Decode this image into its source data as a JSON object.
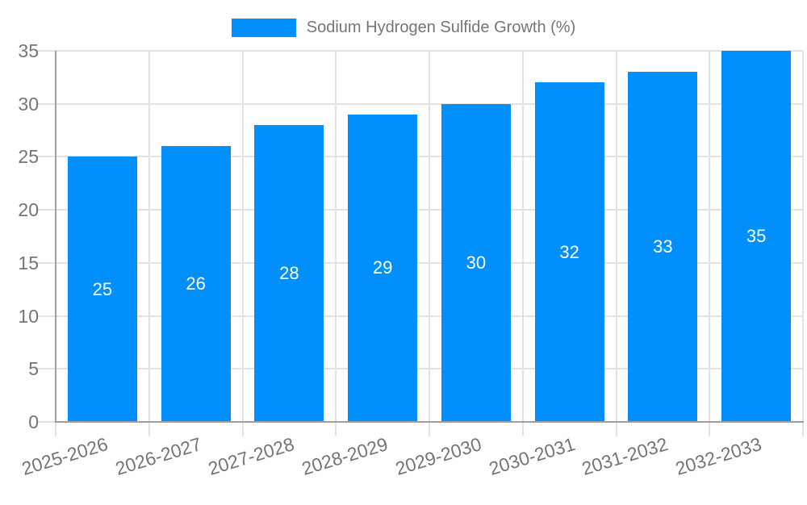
{
  "legend": {
    "label": "Sodium Hydrogen Sulfide Growth (%)"
  },
  "chart_data": {
    "type": "bar",
    "title": "",
    "series_name": "Sodium Hydrogen Sulfide Growth (%)",
    "categories": [
      "2025-2026",
      "2026-2027",
      "2027-2028",
      "2028-2029",
      "2029-2030",
      "2030-2031",
      "2031-2032",
      "2032-2033"
    ],
    "values": [
      25,
      26,
      28,
      29,
      30,
      32,
      33,
      35
    ],
    "bar_labels": [
      25,
      26,
      28,
      29,
      30,
      32,
      33,
      35
    ],
    "xlabel": "",
    "ylabel": "",
    "ylim": [
      0,
      35
    ],
    "y_ticks": [
      0,
      5,
      10,
      15,
      20,
      25,
      30,
      35
    ],
    "grid": "on",
    "legend_position": "top-center",
    "x_tick_rotation_deg": -17
  },
  "colors": {
    "bar": "#008FFB",
    "grid": "#E2E2E2",
    "axis": "#9E9E9E",
    "tick_text": "#757575",
    "bar_label_text": "#FFFFFF",
    "background": "#FFFFFF"
  }
}
